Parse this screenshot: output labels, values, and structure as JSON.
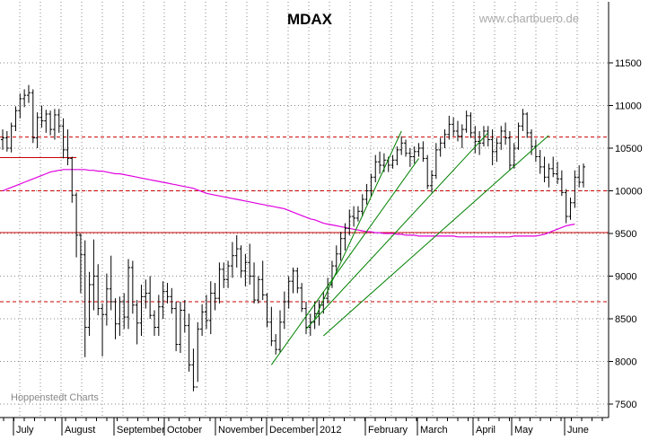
{
  "watermark": "www.chartbuero.de",
  "credit": "Hoppenstedt Charts",
  "colors": {
    "bars": "#000000",
    "grid": "#888888",
    "moving_average": "#e000e0",
    "resistance_lines": "#cc0000",
    "trend_lines": "#008000",
    "watermark": "#aaaaaa"
  },
  "chart_data": {
    "type": "ohlc",
    "title": "MDAX",
    "xlabel": "",
    "ylabel": "",
    "ylim": [
      7350,
      11600
    ],
    "y_ticks": [
      7500,
      8000,
      8500,
      9000,
      9500,
      10000,
      10500,
      11000,
      11500
    ],
    "x_month_labels": [
      "July",
      "August",
      "September",
      "October",
      "November",
      "December",
      "2012",
      "February",
      "March",
      "April",
      "May",
      "June"
    ],
    "grid": "dotted vertical and horizontal",
    "series": [
      {
        "points": [
          [
            10600,
            10720,
            10480,
            10620
          ],
          [
            10620,
            10700,
            10460,
            10500
          ],
          [
            10500,
            10800,
            10450,
            10760
          ],
          [
            10760,
            10990,
            10700,
            10940
          ],
          [
            10940,
            11140,
            10850,
            11080
          ],
          [
            11080,
            11190,
            10980,
            11120
          ],
          [
            11120,
            11240,
            11030,
            11150
          ],
          [
            11150,
            11190,
            10560,
            10620
          ],
          [
            10620,
            10920,
            10500,
            10860
          ],
          [
            10860,
            11000,
            10740,
            10820
          ],
          [
            10820,
            10950,
            10680,
            10900
          ],
          [
            10900,
            10940,
            10650,
            10720
          ],
          [
            10720,
            10960,
            10600,
            10890
          ],
          [
            10890,
            10960,
            10680,
            10760
          ],
          [
            10760,
            10850,
            10380,
            10480
          ],
          [
            10480,
            10720,
            10300,
            10380
          ],
          [
            10380,
            10400,
            9860,
            9950
          ],
          [
            9950,
            9980,
            9220,
            9480
          ],
          [
            9480,
            9500,
            8800,
            9250
          ],
          [
            9250,
            9420,
            8050,
            8400
          ],
          [
            8400,
            9050,
            8300,
            8900
          ],
          [
            8900,
            9430,
            8600,
            9000
          ],
          [
            9000,
            9140,
            8540,
            8620
          ],
          [
            8620,
            8680,
            8060,
            8550
          ],
          [
            8550,
            9030,
            8420,
            8850
          ],
          [
            8850,
            9240,
            8600,
            8700
          ],
          [
            8700,
            8740,
            8260,
            8440
          ],
          [
            8440,
            8760,
            8300,
            8700
          ],
          [
            8700,
            8800,
            8380,
            8520
          ],
          [
            8520,
            9200,
            8380,
            9100
          ],
          [
            9100,
            9180,
            8560,
            8660
          ],
          [
            8660,
            8720,
            8200,
            8450
          ],
          [
            8450,
            8900,
            8300,
            8760
          ],
          [
            8760,
            8960,
            8620,
            8800
          ],
          [
            8800,
            9000,
            8500,
            8540
          ],
          [
            8540,
            8600,
            8300,
            8400
          ],
          [
            8400,
            8780,
            8300,
            8640
          ],
          [
            8640,
            8940,
            8500,
            8820
          ],
          [
            8820,
            8920,
            8680,
            8760
          ],
          [
            8760,
            8860,
            8560,
            8620
          ],
          [
            8620,
            8700,
            8120,
            8200
          ],
          [
            8200,
            8700,
            8100,
            8600
          ],
          [
            8600,
            8720,
            8340,
            8420
          ],
          [
            8420,
            8560,
            7880,
            7960
          ],
          [
            7960,
            8150,
            7650,
            7700
          ],
          [
            7700,
            8460,
            7760,
            8380
          ],
          [
            8380,
            8670,
            8300,
            8580
          ],
          [
            8580,
            8780,
            8380,
            8480
          ],
          [
            8480,
            8940,
            8320,
            8800
          ],
          [
            8800,
            8920,
            8600,
            8740
          ],
          [
            8740,
            9160,
            8680,
            9080
          ],
          [
            9080,
            9160,
            8860,
            8960
          ],
          [
            8960,
            9180,
            8860,
            9120
          ],
          [
            9120,
            9400,
            8980,
            9240
          ],
          [
            9240,
            9480,
            9100,
            9320
          ],
          [
            9320,
            9360,
            8980,
            9060
          ],
          [
            9060,
            9260,
            8880,
            9160
          ],
          [
            9160,
            9380,
            8900,
            9000
          ],
          [
            9000,
            9160,
            8680,
            8720
          ],
          [
            8720,
            9000,
            8680,
            8960
          ],
          [
            8960,
            9180,
            8720,
            8780
          ],
          [
            8780,
            8800,
            8400,
            8460
          ],
          [
            8460,
            8640,
            8180,
            8240
          ],
          [
            8240,
            8320,
            8080,
            8140
          ],
          [
            8140,
            8600,
            8100,
            8460
          ],
          [
            8460,
            8820,
            8380,
            8700
          ],
          [
            8700,
            9000,
            8620,
            8940
          ],
          [
            8940,
            9100,
            8800,
            9060
          ],
          [
            9060,
            9100,
            8800,
            8860
          ],
          [
            8860,
            8920,
            8580,
            8620
          ],
          [
            8620,
            8700,
            8320,
            8400
          ],
          [
            8400,
            8560,
            8300,
            8460
          ],
          [
            8460,
            8700,
            8380,
            8560
          ],
          [
            8560,
            8720,
            8420,
            8660
          ],
          [
            8660,
            8820,
            8560,
            8740
          ],
          [
            8740,
            8980,
            8680,
            8900
          ],
          [
            8900,
            9180,
            8860,
            9120
          ],
          [
            9120,
            9360,
            9020,
            9260
          ],
          [
            9260,
            9520,
            9180,
            9440
          ],
          [
            9440,
            9620,
            9300,
            9560
          ],
          [
            9560,
            9780,
            9480,
            9700
          ],
          [
            9700,
            9820,
            9580,
            9680
          ],
          [
            9680,
            9820,
            9640,
            9760
          ],
          [
            9760,
            9960,
            9700,
            9900
          ],
          [
            9900,
            10080,
            9840,
            10000
          ],
          [
            10000,
            10200,
            9940,
            10160
          ],
          [
            10160,
            10420,
            10100,
            10340
          ],
          [
            10340,
            10460,
            10200,
            10300
          ],
          [
            10300,
            10440,
            10220,
            10360
          ],
          [
            10360,
            10400,
            10220,
            10300
          ],
          [
            10300,
            10420,
            10260,
            10360
          ],
          [
            10360,
            10520,
            10300,
            10480
          ],
          [
            10480,
            10640,
            10420,
            10560
          ],
          [
            10560,
            10600,
            10400,
            10440
          ],
          [
            10440,
            10500,
            10280,
            10400
          ],
          [
            10400,
            10520,
            10320,
            10460
          ],
          [
            10460,
            10560,
            10400,
            10500
          ],
          [
            10500,
            10580,
            10340,
            10380
          ],
          [
            10380,
            10420,
            10020,
            10060
          ],
          [
            10060,
            10240,
            9980,
            10180
          ],
          [
            10180,
            10560,
            10140,
            10480
          ],
          [
            10480,
            10620,
            10400,
            10560
          ],
          [
            10560,
            10720,
            10500,
            10660
          ],
          [
            10660,
            10880,
            10600,
            10780
          ],
          [
            10780,
            10860,
            10640,
            10700
          ],
          [
            10700,
            10820,
            10580,
            10640
          ],
          [
            10640,
            10780,
            10500,
            10720
          ],
          [
            10720,
            10940,
            10680,
            10880
          ],
          [
            10880,
            10920,
            10620,
            10680
          ],
          [
            10680,
            10760,
            10440,
            10580
          ],
          [
            10580,
            10700,
            10420,
            10560
          ],
          [
            10560,
            10760,
            10520,
            10700
          ],
          [
            10700,
            10760,
            10520,
            10600
          ],
          [
            10600,
            10720,
            10300,
            10460
          ],
          [
            10460,
            10620,
            10340,
            10560
          ],
          [
            10560,
            10760,
            10480,
            10700
          ],
          [
            10700,
            10800,
            10540,
            10620
          ],
          [
            10620,
            10700,
            10240,
            10300
          ],
          [
            10300,
            10560,
            10260,
            10500
          ],
          [
            10500,
            10800,
            10480,
            10760
          ],
          [
            10760,
            10960,
            10700,
            10900
          ],
          [
            10900,
            10920,
            10620,
            10680
          ],
          [
            10680,
            10720,
            10420,
            10520
          ],
          [
            10520,
            10600,
            10340,
            10400
          ],
          [
            10400,
            10480,
            10200,
            10280
          ],
          [
            10280,
            10400,
            10100,
            10160
          ],
          [
            10160,
            10320,
            10040,
            10260
          ],
          [
            10260,
            10400,
            10160,
            10200
          ],
          [
            10200,
            10340,
            10080,
            10140
          ],
          [
            10140,
            10240,
            9940,
            9980
          ],
          [
            9980,
            10020,
            9620,
            9700
          ],
          [
            9700,
            9920,
            9660,
            9860
          ],
          [
            9860,
            10240,
            9800,
            10160
          ],
          [
            10160,
            10300,
            10040,
            10100
          ],
          [
            10100,
            10320,
            10040,
            10280
          ]
        ]
      },
      {
        "name": "",
        "values": [
          10000,
          10020,
          10040,
          10060,
          10080,
          10100,
          10120,
          10140,
          10160,
          10180,
          10200,
          10220,
          10230,
          10240,
          10250,
          10250,
          10250,
          10250,
          10250,
          10250,
          10240,
          10240,
          10230,
          10230,
          10220,
          10210,
          10200,
          10200,
          10190,
          10180,
          10170,
          10160,
          10150,
          10140,
          10130,
          10120,
          10110,
          10100,
          10090,
          10080,
          10070,
          10060,
          10050,
          10040,
          10030,
          10010,
          9990,
          9970,
          9960,
          9950,
          9940,
          9930,
          9920,
          9910,
          9900,
          9890,
          9880,
          9870,
          9860,
          9850,
          9840,
          9830,
          9820,
          9810,
          9800,
          9790,
          9770,
          9750,
          9730,
          9710,
          9690,
          9670,
          9660,
          9640,
          9620,
          9610,
          9600,
          9590,
          9580,
          9570,
          9560,
          9550,
          9540,
          9530,
          9520,
          9520,
          9510,
          9510,
          9500,
          9500,
          9500,
          9490,
          9490,
          9480,
          9480,
          9480,
          9470,
          9470,
          9470,
          9470,
          9470,
          9470,
          9470,
          9470,
          9470,
          9460,
          9460,
          9460,
          9460,
          9460,
          9460,
          9460,
          9460,
          9460,
          9460,
          9460,
          9460,
          9460,
          9470,
          9470,
          9470,
          9470,
          9470,
          9470,
          9480,
          9490,
          9510,
          9530,
          9550,
          9570,
          9590,
          9600,
          9610
        ]
      }
    ],
    "horizontal_lines": [
      {
        "value": 10630,
        "style": "dashed"
      },
      {
        "value": 10000,
        "style": "dashed"
      },
      {
        "value": 8700,
        "style": "dashed"
      },
      {
        "value": 9510,
        "style": "solid"
      },
      {
        "value": 10390,
        "style": "solid",
        "span": "start"
      }
    ],
    "trend_lines": [
      {
        "from": [
          62,
          7960
        ],
        "to": [
          96,
          10380
        ]
      },
      {
        "from": [
          70,
          8380
        ],
        "to": [
          112,
          10680
        ]
      },
      {
        "from": [
          74,
          8300
        ],
        "to": [
          126,
          10650
        ]
      },
      {
        "from": [
          72,
          8500
        ],
        "to": [
          92,
          10700
        ]
      }
    ]
  }
}
